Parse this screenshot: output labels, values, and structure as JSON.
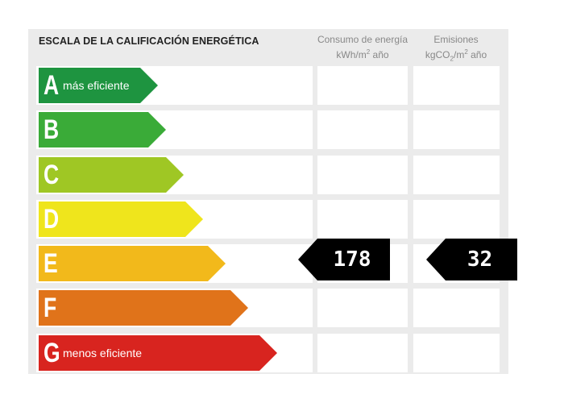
{
  "title": "ESCALA DE LA CALIFICACIÓN ENERGÉTICA",
  "columns": {
    "consumption": {
      "line1": "Consumo de energía",
      "line2_main": "kWh/m",
      "line2_sup": "2",
      "line2_tail": " año"
    },
    "emissions": {
      "line1": "Emisiones",
      "line2_a": "kgCO",
      "line2_sub": "2",
      "line2_b": "/m",
      "line2_sup": "2",
      "line2_tail": " año"
    }
  },
  "ratings": [
    {
      "letter": "A",
      "label": "más eficiente",
      "color": "#1e9440"
    },
    {
      "letter": "B",
      "label": "",
      "color": "#3aab38"
    },
    {
      "letter": "C",
      "label": "",
      "color": "#9fc724"
    },
    {
      "letter": "D",
      "label": "",
      "color": "#efe51c"
    },
    {
      "letter": "E",
      "label": "",
      "color": "#f2b91b"
    },
    {
      "letter": "F",
      "label": "",
      "color": "#e0731a"
    },
    {
      "letter": "G",
      "label": "menos eficiente",
      "color": "#d8241f"
    }
  ],
  "current_rating": "E",
  "consumption_value": "178",
  "emissions_value": "32"
}
